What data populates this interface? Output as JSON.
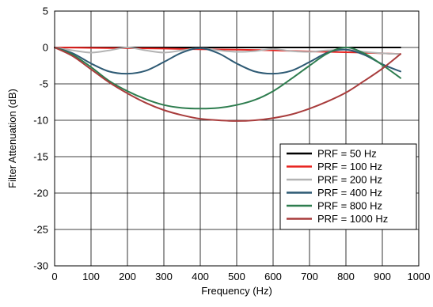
{
  "chart_data": {
    "type": "line",
    "title": "",
    "xlabel": "Frequency (Hz)",
    "ylabel": "Filter Attenuation (dB)",
    "xlim": [
      0,
      1000
    ],
    "ylim": [
      -30,
      5
    ],
    "x_ticks": [
      "0",
      "100",
      "200",
      "300",
      "400",
      "500",
      "600",
      "700",
      "800",
      "900",
      "1000"
    ],
    "y_ticks": [
      "5",
      "0",
      "-5",
      "-10",
      "-15",
      "-20",
      "-25",
      "-30"
    ],
    "grid": true,
    "legend_position": "bottom-right",
    "series": [
      {
        "name": "PRF = 50 Hz",
        "color": "#000000",
        "x": [
          0,
          950
        ],
        "y": [
          0,
          0
        ]
      },
      {
        "name": "PRF = 100 Hz",
        "color": "#e8231f",
        "x": [
          0,
          100,
          200,
          300,
          400,
          500,
          600,
          700,
          800,
          900,
          950
        ],
        "y": [
          0,
          -0.05,
          -0.1,
          -0.15,
          -0.25,
          -0.3,
          -0.4,
          -0.55,
          -0.65,
          -0.8,
          -0.9
        ]
      },
      {
        "name": "PRF = 200 Hz",
        "color": "#b3b3b3",
        "x": [
          0,
          50,
          100,
          150,
          200,
          250,
          300,
          350,
          400,
          450,
          500,
          550,
          600,
          650,
          700,
          750,
          800,
          850,
          900,
          950
        ],
        "y": [
          0,
          -0.4,
          -0.7,
          -0.4,
          0,
          -0.4,
          -0.7,
          -0.4,
          -0.1,
          -0.4,
          -0.6,
          -0.5,
          -0.2,
          -0.5,
          -0.6,
          -0.4,
          -0.3,
          -0.6,
          -0.8,
          -0.9
        ]
      },
      {
        "name": "PRF = 400 Hz",
        "color": "#2e5a74",
        "x": [
          0,
          50,
          100,
          150,
          200,
          250,
          300,
          350,
          400,
          450,
          500,
          550,
          600,
          650,
          700,
          750,
          800,
          850,
          900,
          950
        ],
        "y": [
          0,
          -0.8,
          -2.2,
          -3.3,
          -3.6,
          -3.2,
          -2.0,
          -0.7,
          -0.1,
          -0.8,
          -2.2,
          -3.3,
          -3.6,
          -3.2,
          -2.0,
          -0.7,
          -0.3,
          -1.0,
          -2.3,
          -3.3
        ]
      },
      {
        "name": "PRF = 800 Hz",
        "color": "#2e7d4f",
        "x": [
          0,
          50,
          100,
          150,
          200,
          250,
          300,
          350,
          400,
          450,
          500,
          550,
          600,
          650,
          700,
          750,
          800,
          850,
          900,
          950
        ],
        "y": [
          0,
          -1.0,
          -2.7,
          -4.6,
          -6.0,
          -7.1,
          -7.9,
          -8.3,
          -8.4,
          -8.3,
          -7.9,
          -7.2,
          -6.0,
          -4.3,
          -2.5,
          -0.8,
          0,
          -0.8,
          -2.4,
          -4.2
        ]
      },
      {
        "name": "PRF = 1000 Hz",
        "color": "#a83c3c",
        "x": [
          0,
          50,
          100,
          150,
          200,
          250,
          300,
          350,
          400,
          450,
          500,
          550,
          600,
          650,
          700,
          750,
          800,
          850,
          900,
          950
        ],
        "y": [
          0,
          -1.2,
          -3.0,
          -4.8,
          -6.3,
          -7.6,
          -8.6,
          -9.3,
          -9.8,
          -10.0,
          -10.1,
          -10.0,
          -9.7,
          -9.2,
          -8.4,
          -7.4,
          -6.2,
          -4.6,
          -2.9,
          -0.9
        ]
      }
    ]
  }
}
